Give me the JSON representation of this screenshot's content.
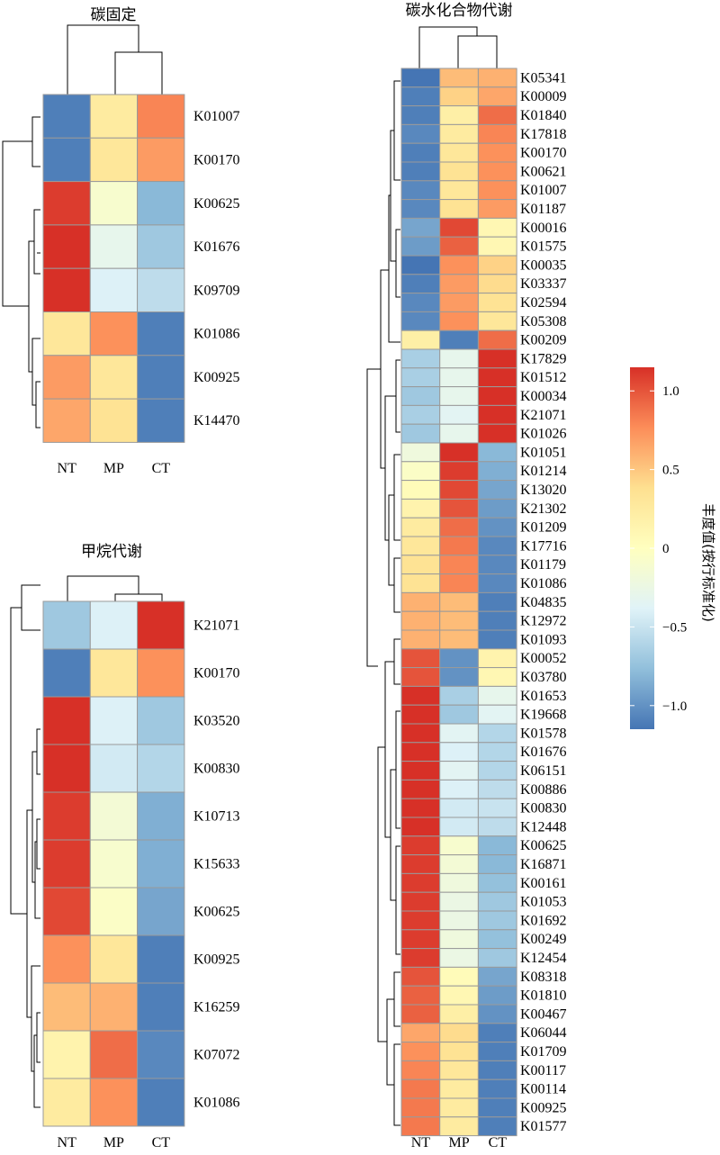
{
  "chart_data": [
    {
      "type": "heatmap",
      "title": "碳固定",
      "columns": [
        "NT",
        "MP",
        "CT"
      ],
      "rows": [
        "K01007",
        "K00170",
        "K00625",
        "K01676",
        "K09709",
        "K01086",
        "K00925",
        "K14470"
      ],
      "values": [
        [
          -1.1,
          0.25,
          0.8
        ],
        [
          -1.1,
          0.3,
          0.7
        ],
        [
          1.1,
          -0.1,
          -0.8
        ],
        [
          1.15,
          -0.3,
          -0.7
        ],
        [
          1.15,
          -0.4,
          -0.55
        ],
        [
          0.3,
          0.75,
          -1.1
        ],
        [
          0.7,
          0.3,
          -1.1
        ],
        [
          0.65,
          0.35,
          -1.1
        ]
      ]
    },
    {
      "type": "heatmap",
      "title": "甲烷代谢",
      "columns": [
        "NT",
        "MP",
        "CT"
      ],
      "rows": [
        "K21071",
        "K00170",
        "K03520",
        "K00830",
        "K10713",
        "K15633",
        "K00625",
        "K00925",
        "K16259",
        "K07072",
        "K01086"
      ],
      "values": [
        [
          -0.7,
          -0.4,
          1.15
        ],
        [
          -1.1,
          0.3,
          0.75
        ],
        [
          1.15,
          -0.4,
          -0.7
        ],
        [
          1.15,
          -0.45,
          -0.6
        ],
        [
          1.1,
          -0.15,
          -0.85
        ],
        [
          1.1,
          -0.1,
          -0.85
        ],
        [
          1.05,
          -0.05,
          -0.9
        ],
        [
          0.75,
          0.3,
          -1.1
        ],
        [
          0.55,
          0.6,
          -1.1
        ],
        [
          0.15,
          0.9,
          -1.05
        ],
        [
          0.25,
          0.75,
          -1.1
        ]
      ]
    },
    {
      "type": "heatmap",
      "title": "碳水化合物代谢",
      "columns": [
        "NT",
        "MP",
        "CT"
      ],
      "rows": [
        "K05341",
        "K00009",
        "K01840",
        "K17818",
        "K00170",
        "K00621",
        "K01007",
        "K01187",
        "K00016",
        "K01575",
        "K00035",
        "K03337",
        "K02594",
        "K05308",
        "K00209",
        "K17829",
        "K01512",
        "K00034",
        "K21071",
        "K01026",
        "K01051",
        "K01214",
        "K13020",
        "K21302",
        "K01209",
        "K17716",
        "K01179",
        "K01086",
        "K04835",
        "K12972",
        "K01093",
        "K00052",
        "K03780",
        "K01653",
        "K19668",
        "K01578",
        "K01676",
        "K06151",
        "K00886",
        "K00830",
        "K12448",
        "K00625",
        "K16871",
        "K00161",
        "K01053",
        "K01692",
        "K00249",
        "K12454",
        "K08318",
        "K01810",
        "K00467",
        "K06044",
        "K01709",
        "K00117",
        "K00114",
        "K00925",
        "K01577"
      ],
      "values": [
        [
          -1.15,
          0.55,
          0.6
        ],
        [
          -1.1,
          0.45,
          0.65
        ],
        [
          -1.1,
          0.2,
          0.9
        ],
        [
          -1.05,
          0.25,
          0.8
        ],
        [
          -1.1,
          0.3,
          0.75
        ],
        [
          -1.1,
          0.35,
          0.75
        ],
        [
          -1.05,
          0.3,
          0.75
        ],
        [
          -1.05,
          0.35,
          0.7
        ],
        [
          -0.9,
          1.05,
          0.1
        ],
        [
          -0.95,
          0.95,
          0.1
        ],
        [
          -1.15,
          0.75,
          0.45
        ],
        [
          -1.1,
          0.7,
          0.4
        ],
        [
          -1.05,
          0.7,
          0.35
        ],
        [
          -1.05,
          0.75,
          0.3
        ],
        [
          0.2,
          -1.1,
          0.9
        ],
        [
          -0.65,
          -0.3,
          1.15
        ],
        [
          -0.65,
          -0.3,
          1.15
        ],
        [
          -0.7,
          -0.3,
          1.15
        ],
        [
          -0.65,
          -0.35,
          1.15
        ],
        [
          -0.7,
          -0.3,
          1.15
        ],
        [
          -0.2,
          1.15,
          -0.8
        ],
        [
          -0.05,
          1.1,
          -0.85
        ],
        [
          0.05,
          1.05,
          -0.9
        ],
        [
          0.15,
          1.0,
          -0.95
        ],
        [
          0.25,
          0.9,
          -1.0
        ],
        [
          0.3,
          0.85,
          -1.05
        ],
        [
          0.35,
          0.8,
          -1.05
        ],
        [
          0.35,
          0.8,
          -1.05
        ],
        [
          0.6,
          0.55,
          -1.1
        ],
        [
          0.6,
          0.55,
          -1.1
        ],
        [
          0.6,
          0.55,
          -1.1
        ],
        [
          1.0,
          -1.0,
          0.15
        ],
        [
          1.0,
          -1.0,
          0.1
        ],
        [
          1.15,
          -0.65,
          -0.3
        ],
        [
          1.15,
          -0.7,
          -0.35
        ],
        [
          1.15,
          -0.35,
          -0.6
        ],
        [
          1.15,
          -0.4,
          -0.6
        ],
        [
          1.15,
          -0.35,
          -0.6
        ],
        [
          1.15,
          -0.4,
          -0.55
        ],
        [
          1.15,
          -0.45,
          -0.5
        ],
        [
          1.15,
          -0.45,
          -0.55
        ],
        [
          1.1,
          -0.1,
          -0.8
        ],
        [
          1.1,
          -0.15,
          -0.8
        ],
        [
          1.1,
          -0.2,
          -0.75
        ],
        [
          1.1,
          -0.25,
          -0.7
        ],
        [
          1.1,
          -0.25,
          -0.7
        ],
        [
          1.1,
          -0.2,
          -0.75
        ],
        [
          1.1,
          -0.25,
          -0.7
        ],
        [
          1.0,
          0.05,
          -0.9
        ],
        [
          0.95,
          0.1,
          -0.95
        ],
        [
          0.95,
          0.2,
          -1.0
        ],
        [
          0.65,
          0.4,
          -1.1
        ],
        [
          0.75,
          0.35,
          -1.1
        ],
        [
          0.8,
          0.3,
          -1.1
        ],
        [
          0.85,
          0.25,
          -1.1
        ],
        [
          0.85,
          0.25,
          -1.1
        ],
        [
          0.85,
          0.25,
          -1.1
        ]
      ]
    }
  ],
  "legend": {
    "title": "丰度值(按行标准化)",
    "ticks": [
      "1.0",
      "0.5",
      "0",
      "−0.5",
      "−1.0"
    ],
    "tick_values": [
      1.0,
      0.5,
      0,
      -0.5,
      -1.0
    ],
    "range": [
      -1.15,
      1.15
    ],
    "colors": [
      "#4575b4",
      "#91bfdb",
      "#e0f3f8",
      "#ffffbf",
      "#fee090",
      "#fc8d59",
      "#d73027"
    ]
  }
}
